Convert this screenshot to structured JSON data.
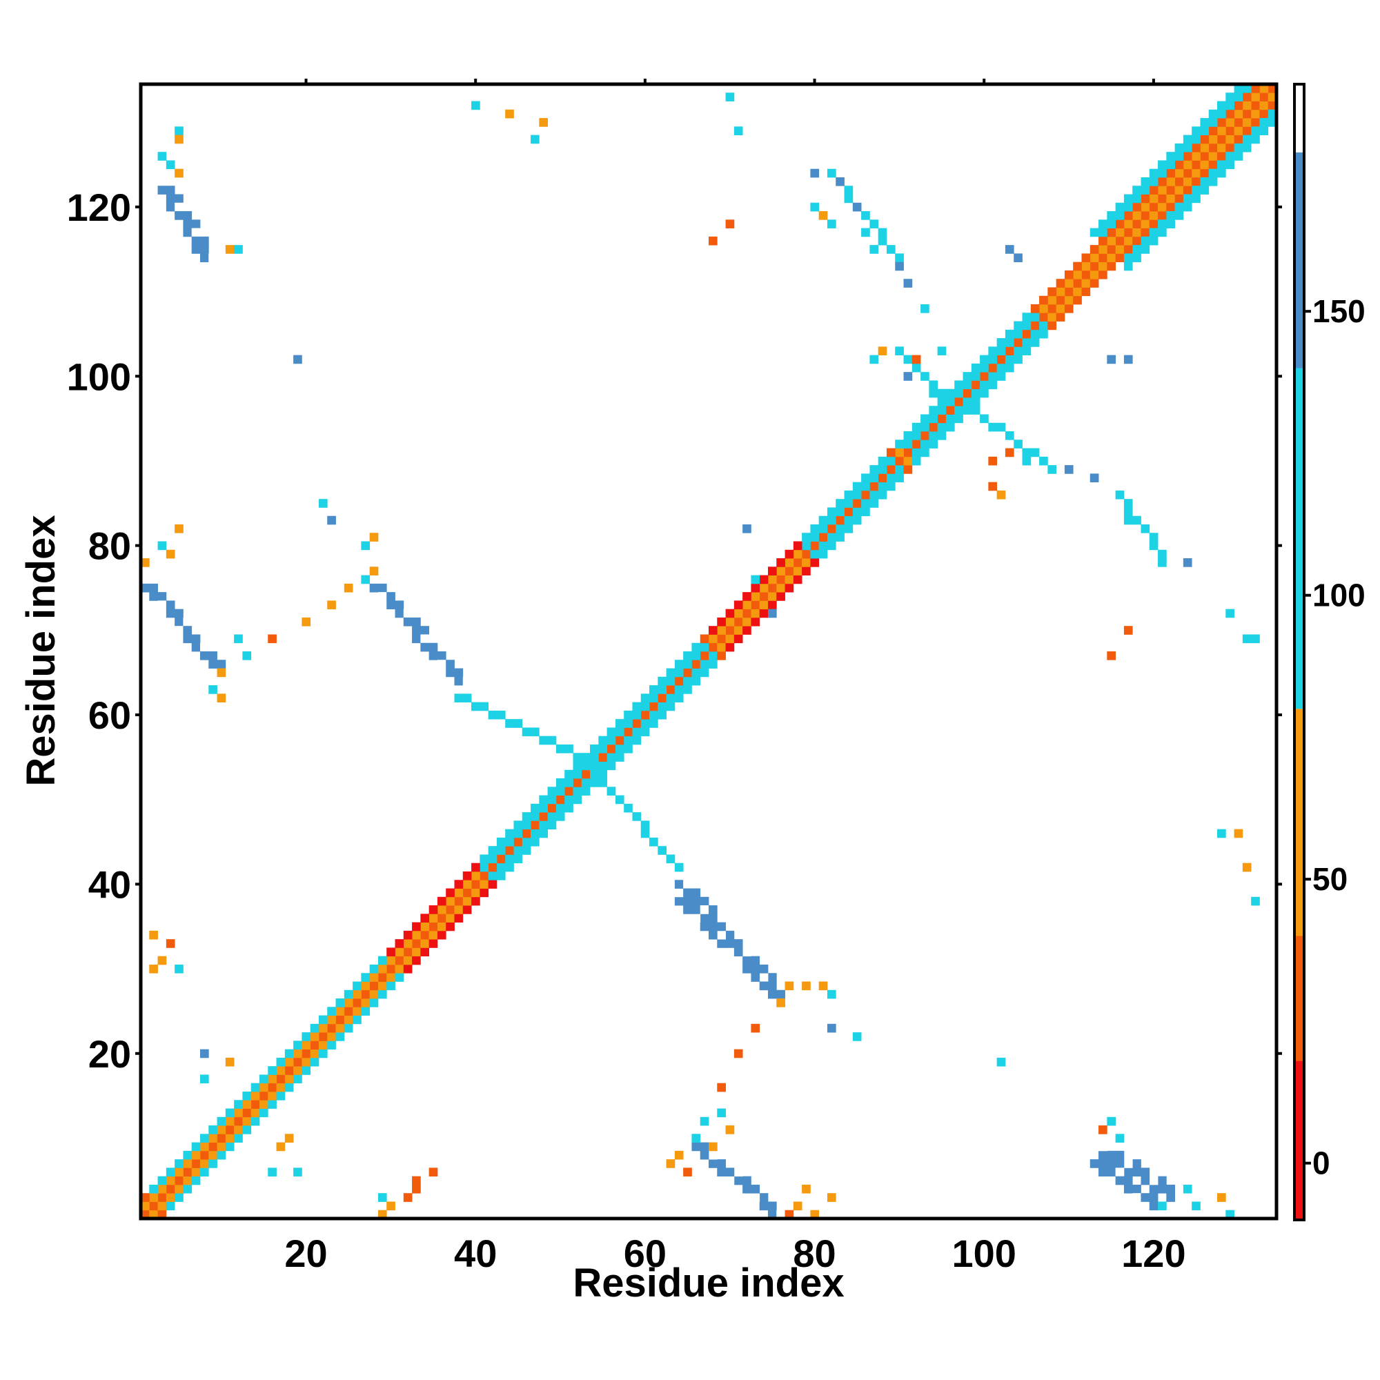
{
  "chart_data": {
    "type": "heatmap",
    "title": "",
    "xlabel": "Residue index",
    "ylabel": "Residue index",
    "xlim": [
      0.5,
      134.5
    ],
    "ylim": [
      0.5,
      134.5
    ],
    "x_ticks": [
      20,
      40,
      60,
      80,
      100,
      120
    ],
    "y_ticks": [
      20,
      40,
      60,
      80,
      100,
      120
    ],
    "colorbar": {
      "range": [
        -10,
        190
      ],
      "ticks": [
        0,
        50,
        100,
        150
      ],
      "bands": [
        {
          "from": -10,
          "to": 18,
          "color": "#ee1111"
        },
        {
          "from": 18,
          "to": 40,
          "color": "#f25a0c"
        },
        {
          "from": 40,
          "to": 80,
          "color": "#f59a0f"
        },
        {
          "from": 80,
          "to": 140,
          "color": "#1ed2e6"
        },
        {
          "from": 140,
          "to": 178,
          "color": "#4a8cc8"
        },
        {
          "from": 178,
          "to": 190,
          "color": "#ffffff"
        }
      ]
    },
    "cell_size": 1,
    "value_meaning": "Each cell (i, j) is a residue pair contact; value is colour-mapped by the colorbar. Pattern is symmetric about the diagonal.",
    "segments": [
      {
        "from": [
          1,
          1
        ],
        "to": [
          134,
          134
        ],
        "width": 3,
        "value": 0,
        "mirror": false
      },
      {
        "from": [
          1,
          2
        ],
        "to": [
          134,
          135
        ],
        "width": 1,
        "value": 45,
        "mirror": true
      },
      {
        "from": [
          1,
          3
        ],
        "to": [
          134,
          136
        ],
        "width": 1,
        "value": 25,
        "mirror": true
      },
      {
        "from": [
          2,
          4
        ],
        "to": [
          36,
          38
        ],
        "width": 1,
        "value": 100,
        "mirror": true
      },
      {
        "from": [
          8,
          6
        ],
        "to": [
          28,
          26
        ],
        "width": 1,
        "value": 100,
        "mirror": true
      },
      {
        "from": [
          40,
          42
        ],
        "to": [
          66,
          68
        ],
        "width": 2,
        "value": 100,
        "mirror": true
      },
      {
        "from": [
          78,
          80
        ],
        "to": [
          88,
          90
        ],
        "width": 2,
        "value": 100,
        "mirror": true
      },
      {
        "from": [
          90,
          92
        ],
        "to": [
          105,
          107
        ],
        "width": 2,
        "value": 100,
        "mirror": true
      },
      {
        "from": [
          113,
          117
        ],
        "to": [
          132,
          136
        ],
        "width": 2,
        "value": 100,
        "mirror": true
      },
      {
        "from": [
          68,
          70
        ],
        "to": [
          78,
          80
        ],
        "width": 1,
        "value": 0,
        "mirror": true
      },
      {
        "from": [
          30,
          32
        ],
        "to": [
          40,
          42
        ],
        "width": 1,
        "value": 0,
        "mirror": true
      },
      {
        "from": [
          1,
          75
        ],
        "to": [
          9,
          66
        ],
        "width": 2,
        "value": 160,
        "mirror": true
      },
      {
        "from": [
          3,
          122
        ],
        "to": [
          8,
          114
        ],
        "width": 2,
        "value": 160,
        "mirror": true
      },
      {
        "from": [
          28,
          75
        ],
        "to": [
          38,
          64
        ],
        "width": 2,
        "value": 160,
        "mirror": true
      },
      {
        "from": [
          64,
          40
        ],
        "to": [
          75,
          27
        ],
        "width": 2,
        "value": 160,
        "mirror": false
      },
      {
        "from": [
          66,
          9
        ],
        "to": [
          75,
          1
        ],
        "width": 2,
        "value": 160,
        "mirror": false
      },
      {
        "from": [
          113,
          7
        ],
        "to": [
          120,
          2
        ],
        "width": 2,
        "value": 160,
        "mirror": false
      },
      {
        "from": [
          38,
          62
        ],
        "to": [
          55,
          54
        ],
        "width": 1,
        "value": 100,
        "mirror": false
      },
      {
        "from": [
          55,
          52
        ],
        "to": [
          64,
          42
        ],
        "width": 1,
        "value": 100,
        "mirror": false
      },
      {
        "from": [
          90,
          103
        ],
        "to": [
          97,
          96
        ],
        "width": 1,
        "value": 100,
        "mirror": false
      },
      {
        "from": [
          99,
          96
        ],
        "to": [
          108,
          89
        ],
        "width": 1,
        "value": 100,
        "mirror": false
      },
      {
        "from": [
          116,
          86
        ],
        "to": [
          121,
          79
        ],
        "width": 1,
        "value": 100,
        "mirror": false
      },
      {
        "from": [
          82,
          124
        ],
        "to": [
          90,
          114
        ],
        "width": 1,
        "value": 130,
        "mirror": false
      }
    ],
    "points": [
      [
        5,
        129,
        100
      ],
      [
        5,
        128,
        45
      ],
      [
        3,
        126,
        100
      ],
      [
        4,
        125,
        100
      ],
      [
        5,
        124,
        45
      ],
      [
        11,
        115,
        45
      ],
      [
        12,
        115,
        100
      ],
      [
        40,
        132,
        100
      ],
      [
        44,
        131,
        45
      ],
      [
        48,
        130,
        45
      ],
      [
        47,
        128,
        100
      ],
      [
        70,
        133,
        100
      ],
      [
        71,
        129,
        100
      ],
      [
        68,
        116,
        25
      ],
      [
        70,
        118,
        25
      ],
      [
        80,
        124,
        150
      ],
      [
        80,
        120,
        100
      ],
      [
        81,
        119,
        45
      ],
      [
        82,
        118,
        100
      ],
      [
        86,
        117,
        100
      ],
      [
        87,
        115,
        100
      ],
      [
        90,
        113,
        150
      ],
      [
        91,
        111,
        150
      ],
      [
        93,
        108,
        100
      ],
      [
        88,
        103,
        45
      ],
      [
        92,
        102,
        25
      ],
      [
        95,
        103,
        100
      ],
      [
        103,
        115,
        150
      ],
      [
        104,
        114,
        150
      ],
      [
        115,
        102,
        150
      ],
      [
        117,
        102,
        150
      ],
      [
        19,
        102,
        150
      ],
      [
        5,
        82,
        45
      ],
      [
        3,
        80,
        100
      ],
      [
        4,
        79,
        45
      ],
      [
        1,
        78,
        45
      ],
      [
        12,
        69,
        100
      ],
      [
        13,
        67,
        100
      ],
      [
        10,
        65,
        45
      ],
      [
        9,
        63,
        100
      ],
      [
        10,
        62,
        45
      ],
      [
        22,
        85,
        100
      ],
      [
        23,
        83,
        150
      ],
      [
        28,
        81,
        45
      ],
      [
        27,
        80,
        100
      ],
      [
        28,
        77,
        45
      ],
      [
        27,
        76,
        100
      ],
      [
        25,
        75,
        45
      ],
      [
        23,
        73,
        45
      ],
      [
        20,
        71,
        45
      ],
      [
        16,
        69,
        25
      ],
      [
        2,
        34,
        45
      ],
      [
        4,
        33,
        25
      ],
      [
        3,
        31,
        45
      ],
      [
        5,
        30,
        100
      ],
      [
        2,
        30,
        45
      ],
      [
        29,
        3,
        100
      ],
      [
        30,
        2,
        45
      ],
      [
        32,
        3,
        25
      ],
      [
        33,
        4,
        25
      ],
      [
        35,
        6,
        25
      ],
      [
        33,
        5,
        25
      ],
      [
        29,
        1,
        45
      ],
      [
        16,
        6,
        100
      ],
      [
        19,
        6,
        100
      ],
      [
        17,
        9,
        45
      ],
      [
        18,
        10,
        45
      ],
      [
        8,
        20,
        150
      ],
      [
        8,
        17,
        100
      ],
      [
        11,
        19,
        45
      ],
      [
        77,
        28,
        45
      ],
      [
        79,
        28,
        45
      ],
      [
        81,
        28,
        45
      ],
      [
        82,
        27,
        100
      ],
      [
        76,
        26,
        45
      ],
      [
        82,
        23,
        150
      ],
      [
        85,
        22,
        100
      ],
      [
        73,
        23,
        25
      ],
      [
        71,
        20,
        25
      ],
      [
        69,
        16,
        25
      ],
      [
        102,
        19,
        100
      ],
      [
        63,
        7,
        45
      ],
      [
        64,
        8,
        45
      ],
      [
        66,
        10,
        100
      ],
      [
        67,
        12,
        100
      ],
      [
        69,
        13,
        100
      ],
      [
        70,
        11,
        45
      ],
      [
        68,
        9,
        45
      ],
      [
        65,
        6,
        25
      ],
      [
        79,
        4,
        45
      ],
      [
        78,
        2,
        45
      ],
      [
        80,
        1,
        45
      ],
      [
        82,
        3,
        45
      ],
      [
        77,
        1,
        25
      ],
      [
        114,
        11,
        25
      ],
      [
        115,
        12,
        100
      ],
      [
        116,
        10,
        100
      ],
      [
        121,
        2,
        100
      ],
      [
        124,
        4,
        100
      ],
      [
        125,
        2,
        100
      ],
      [
        128,
        3,
        45
      ],
      [
        129,
        1,
        100
      ],
      [
        115,
        67,
        25
      ],
      [
        117,
        70,
        25
      ],
      [
        128,
        46,
        100
      ],
      [
        130,
        46,
        45
      ],
      [
        131,
        42,
        45
      ],
      [
        132,
        38,
        100
      ],
      [
        129,
        72,
        100
      ],
      [
        131,
        69,
        100
      ],
      [
        132,
        69,
        100
      ],
      [
        101,
        90,
        25
      ],
      [
        101,
        87,
        25
      ],
      [
        102,
        86,
        45
      ],
      [
        103,
        91,
        25
      ],
      [
        105,
        90,
        100
      ],
      [
        107,
        90,
        100
      ],
      [
        110,
        89,
        150
      ],
      [
        113,
        88,
        150
      ],
      [
        117,
        83,
        100
      ],
      [
        119,
        82,
        100
      ],
      [
        121,
        78,
        100
      ],
      [
        124,
        78,
        150
      ],
      [
        87,
        102,
        100
      ],
      [
        91,
        100,
        150
      ],
      [
        94,
        98,
        100
      ],
      [
        72,
        82,
        150
      ],
      [
        75,
        72,
        150
      ],
      [
        73,
        76,
        100
      ]
    ]
  }
}
